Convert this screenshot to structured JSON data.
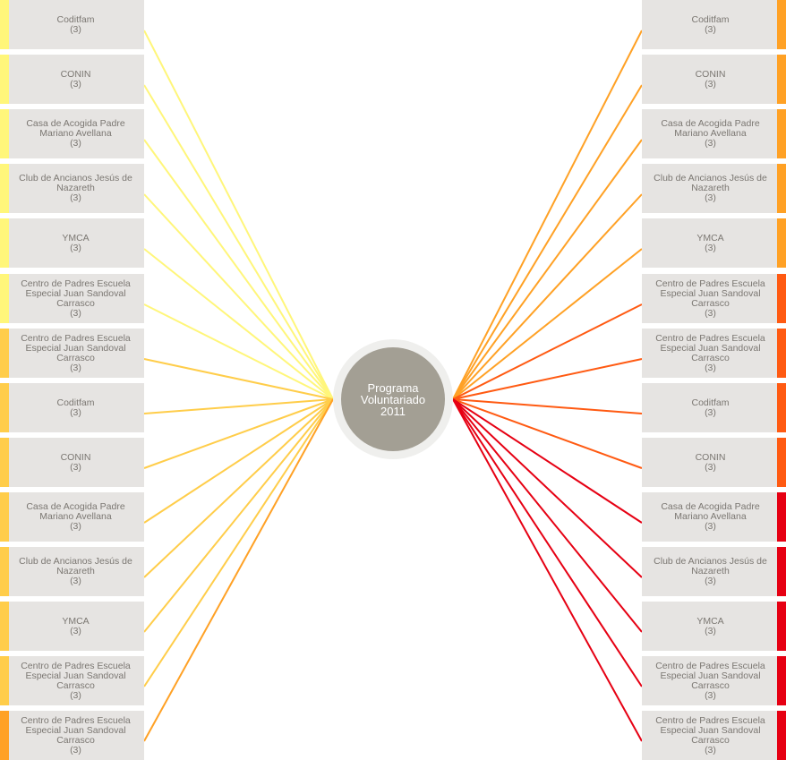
{
  "center": {
    "label": "Programa\nVoluntariado\n2011",
    "color": "#a39f94",
    "ring_color": "#efefed"
  },
  "colors": {
    "yellow": "#fff67a",
    "amber": "#ffcd4a",
    "orange": "#ffa125",
    "red_orange": "#ff5a12",
    "red": "#e60013",
    "node_bg": "#e6e4e2",
    "node_text": "#7b7772"
  },
  "left_nodes": [
    {
      "name": "Coditfam",
      "count": "(3)",
      "color": "#fff67a"
    },
    {
      "name": "CONIN",
      "count": "(3)",
      "color": "#fff67a"
    },
    {
      "name": "Casa de Acogida Padre\nMariano Avellana",
      "count": "(3)",
      "color": "#fff67a"
    },
    {
      "name": "Club de Ancianos Jesús de\nNazareth",
      "count": "(3)",
      "color": "#fff67a"
    },
    {
      "name": "YMCA",
      "count": "(3)",
      "color": "#fff67a"
    },
    {
      "name": "Centro de Padres Escuela\nEspecial Juan Sandoval\nCarrasco",
      "count": "(3)",
      "color": "#fff67a"
    },
    {
      "name": "Centro de Padres Escuela\nEspecial Juan Sandoval\nCarrasco",
      "count": "(3)",
      "color": "#ffcd4a"
    },
    {
      "name": "Coditfam",
      "count": "(3)",
      "color": "#ffcd4a"
    },
    {
      "name": "CONIN",
      "count": "(3)",
      "color": "#ffcd4a"
    },
    {
      "name": "Casa de Acogida Padre\nMariano Avellana",
      "count": "(3)",
      "color": "#ffcd4a"
    },
    {
      "name": "Club de Ancianos Jesús de\nNazareth",
      "count": "(3)",
      "color": "#ffcd4a"
    },
    {
      "name": "YMCA",
      "count": "(3)",
      "color": "#ffcd4a"
    },
    {
      "name": "Centro de Padres Escuela\nEspecial Juan Sandoval\nCarrasco",
      "count": "(3)",
      "color": "#ffcd4a"
    },
    {
      "name": "Centro de Padres Escuela\nEspecial Juan Sandoval\nCarrasco",
      "count": "(3)",
      "color": "#ffa125"
    }
  ],
  "right_nodes": [
    {
      "name": "Coditfam",
      "count": "(3)",
      "color": "#ffa125"
    },
    {
      "name": "CONIN",
      "count": "(3)",
      "color": "#ffa125"
    },
    {
      "name": "Casa de Acogida Padre\nMariano Avellana",
      "count": "(3)",
      "color": "#ffa125"
    },
    {
      "name": "Club de Ancianos Jesús de\nNazareth",
      "count": "(3)",
      "color": "#ffa125"
    },
    {
      "name": "YMCA",
      "count": "(3)",
      "color": "#ffa125"
    },
    {
      "name": "Centro de Padres Escuela\nEspecial Juan Sandoval\nCarrasco",
      "count": "(3)",
      "color": "#ff5a12"
    },
    {
      "name": "Centro de Padres Escuela\nEspecial Juan Sandoval\nCarrasco",
      "count": "(3)",
      "color": "#ff5a12"
    },
    {
      "name": "Coditfam",
      "count": "(3)",
      "color": "#ff5a12"
    },
    {
      "name": "CONIN",
      "count": "(3)",
      "color": "#ff5a12"
    },
    {
      "name": "Casa de Acogida Padre\nMariano Avellana",
      "count": "(3)",
      "color": "#e60013"
    },
    {
      "name": "Club de Ancianos Jesús de\nNazareth",
      "count": "(3)",
      "color": "#e60013"
    },
    {
      "name": "YMCA",
      "count": "(3)",
      "color": "#e60013"
    },
    {
      "name": "Centro de Padres Escuela\nEspecial Juan Sandoval\nCarrasco",
      "count": "(3)",
      "color": "#e60013"
    },
    {
      "name": "Centro de Padres Escuela\nEspecial Juan Sandoval\nCarrasco",
      "count": "(3)",
      "color": "#e60013"
    }
  ]
}
